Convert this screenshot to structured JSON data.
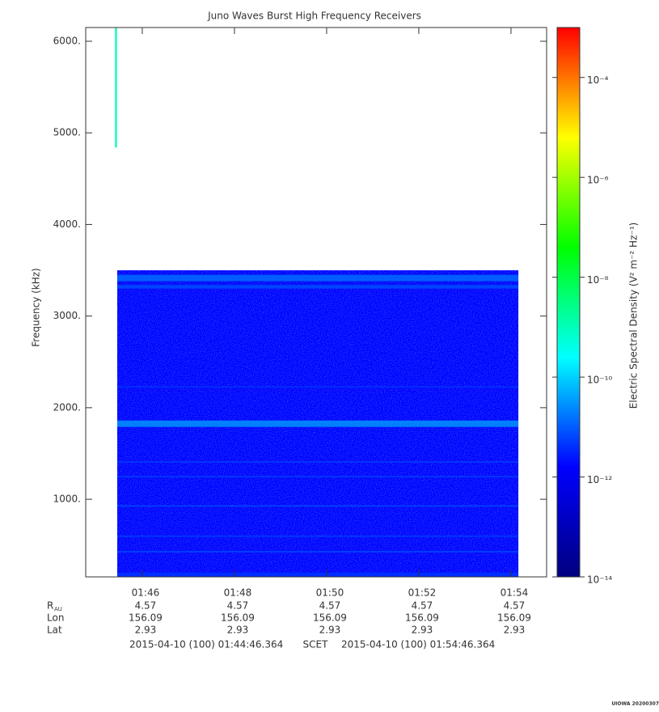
{
  "chart_data": {
    "type": "spectrogram",
    "title": "Juno Waves Burst High Frequency Receivers",
    "y_label": "Frequency (kHz)",
    "colorbar_label": "Electric Spectral Density (V² m⁻² Hz⁻¹)",
    "xlim": [
      44.7727,
      54.7727
    ],
    "xticks": [
      {
        "value": 46,
        "label": "01:46"
      },
      {
        "value": 48,
        "label": "01:48"
      },
      {
        "value": 50,
        "label": "01:50"
      },
      {
        "value": 52,
        "label": "01:52"
      },
      {
        "value": 54,
        "label": "01:54"
      }
    ],
    "ylim": [
      153,
      6150
    ],
    "yticks": [
      {
        "value": 1000,
        "label": "1000."
      },
      {
        "value": 2000,
        "label": "2000."
      },
      {
        "value": 3000,
        "label": "3000."
      },
      {
        "value": 4000,
        "label": "4000."
      },
      {
        "value": 5000,
        "label": "5000."
      },
      {
        "value": 6000,
        "label": "6000."
      }
    ],
    "zlim": [
      1e-14,
      0.001
    ],
    "zlog": true,
    "zticks": [
      {
        "value": 1e-14,
        "label": "10⁻¹⁴"
      },
      {
        "value": 1e-12,
        "label": "10⁻¹²"
      },
      {
        "value": 1e-10,
        "label": "10⁻¹⁰"
      },
      {
        "value": 1e-08,
        "label": "10⁻⁸"
      },
      {
        "value": 1e-06,
        "label": "10⁻⁶"
      },
      {
        "value": 0.0001,
        "label": "10⁻⁴"
      }
    ],
    "colormap": [
      "#00007f",
      "#0000ff",
      "#00ffff",
      "#00ff00",
      "#ffff00",
      "#ff0000"
    ],
    "bands": [
      {
        "xlim": [
          45.457,
          54.16
        ],
        "ylim": [
          153,
          3500
        ],
        "value": 1.5e-12
      },
      {
        "xlim": [
          45.457,
          54.16
        ],
        "ylim": [
          153,
          200
        ],
        "value": 4e-12
      },
      {
        "xlim": [
          45.457,
          54.16
        ],
        "ylim": [
          420,
          435
        ],
        "value": 6e-12
      },
      {
        "xlim": [
          45.457,
          54.16
        ],
        "ylim": [
          590,
          605
        ],
        "value": 5e-12
      },
      {
        "xlim": [
          45.457,
          54.16
        ],
        "ylim": [
          920,
          935
        ],
        "value": 6e-12
      },
      {
        "xlim": [
          45.457,
          54.16
        ],
        "ylim": [
          1240,
          1255
        ],
        "value": 5e-12
      },
      {
        "xlim": [
          45.457,
          54.16
        ],
        "ylim": [
          1400,
          1415
        ],
        "value": 5e-12
      },
      {
        "xlim": [
          45.457,
          54.16
        ],
        "ylim": [
          1790,
          1860
        ],
        "value": 2e-11
      },
      {
        "xlim": [
          45.457,
          54.16
        ],
        "ylim": [
          2220,
          2235
        ],
        "value": 4e-12
      },
      {
        "xlim": [
          45.457,
          54.16
        ],
        "ylim": [
          3300,
          3340
        ],
        "value": 6e-12
      },
      {
        "xlim": [
          45.457,
          54.16
        ],
        "ylim": [
          3380,
          3450
        ],
        "value": 1e-11
      },
      {
        "xlim": [
          45.41,
          45.45
        ],
        "ylim": [
          4840,
          6150
        ],
        "value": 1e-09
      }
    ],
    "ephemeris": [
      {
        "label": "R",
        "sub": "AU",
        "values": [
          4.57,
          4.57,
          4.57,
          4.57,
          4.57
        ]
      },
      {
        "label": "Lon",
        "values": [
          156.09,
          156.09,
          156.09,
          156.09,
          156.09
        ]
      },
      {
        "label": "Lat",
        "values": [
          2.93,
          2.93,
          2.93,
          2.93,
          2.93
        ]
      }
    ],
    "time_range": {
      "start": "2015-04-10 (100) 01:44:46.364",
      "frame": "SCET",
      "end": "2015-04-10 (100) 01:54:46.364"
    },
    "footer": "UIOWA 20200307"
  }
}
